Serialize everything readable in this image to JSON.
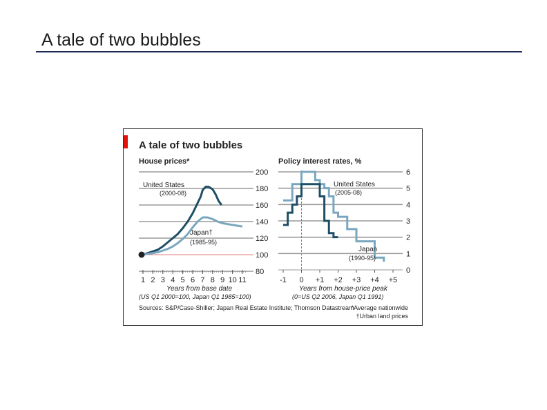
{
  "slide": {
    "title": "A tale of two bubbles"
  },
  "chart_data": [
    {
      "type": "line",
      "title": "A tale of two bubbles",
      "panel_title": "House prices*",
      "xlabel": "Years from base date",
      "xnote": "(US Q1 2000=100, Japan Q1 1985=100)",
      "xticks": [
        "1",
        "2",
        "3",
        "4",
        "5",
        "6",
        "7",
        "8",
        "9",
        "10",
        "11"
      ],
      "yticks": [
        "200",
        "180",
        "160",
        "140",
        "120",
        "100",
        "80"
      ],
      "ylim": [
        80,
        200
      ],
      "xlim": [
        0.5,
        11.5
      ],
      "grid": true,
      "series": [
        {
          "name": "United States",
          "sublabel": "(2000-08)",
          "color": "#1d4e66",
          "x": [
            1,
            1.5,
            2,
            2.5,
            3,
            3.5,
            4,
            4.5,
            5,
            5.5,
            6,
            6.4,
            6.8,
            7,
            7.3,
            7.6,
            8,
            8.3,
            8.6,
            8.9
          ],
          "y": [
            100,
            102,
            104,
            106,
            110,
            115,
            120,
            125,
            132,
            140,
            150,
            160,
            170,
            178,
            182,
            182,
            179,
            173,
            165,
            160
          ]
        },
        {
          "name": "Japan†",
          "sublabel": "(1985-95)",
          "color": "#7aa7bf",
          "x": [
            1,
            1.5,
            2,
            2.5,
            3,
            3.5,
            4,
            4.5,
            5,
            5.5,
            6,
            6.5,
            7,
            7.5,
            8,
            8.5,
            9,
            9.5,
            10,
            10.5,
            11
          ],
          "y": [
            100,
            101,
            102,
            103,
            105,
            107,
            110,
            114,
            119,
            125,
            133,
            140,
            145,
            145,
            143,
            140,
            138,
            137,
            136,
            135,
            134
          ]
        }
      ],
      "annotations": [
        "United States",
        "(2000-08)",
        "Japan†",
        "(1985-95)"
      ],
      "sources": "Sources: S&P/Case-Shiller; Japan Real Estate Institute; Thomson Datastream"
    },
    {
      "type": "line",
      "panel_title": "Policy interest rates, %",
      "xlabel": "Years from house-price peak",
      "xnote": "(0=US Q2 2006, Japan Q1 1991)",
      "xticks": [
        "-1",
        "0",
        "+1",
        "+2",
        "+3",
        "+4",
        "+5"
      ],
      "yticks": [
        "6",
        "5",
        "4",
        "3",
        "2",
        "1",
        "0"
      ],
      "ylim": [
        0,
        6
      ],
      "xlim": [
        -1.25,
        5.25
      ],
      "grid": true,
      "series": [
        {
          "name": "United States",
          "sublabel": "(2005-08)",
          "color": "#1d4e66",
          "x": [
            -1,
            -0.75,
            -0.5,
            -0.25,
            0,
            0.25,
            0.5,
            0.75,
            1,
            1.25,
            1.5,
            1.75,
            2
          ],
          "y": [
            2.75,
            3.5,
            4,
            4.5,
            5.25,
            5.25,
            5.25,
            5.25,
            4.5,
            3.0,
            2.25,
            2.0,
            2.0
          ]
        },
        {
          "name": "Japan",
          "sublabel": "(1990-95)",
          "color": "#7aa7bf",
          "x": [
            -1,
            -0.75,
            -0.5,
            -0.25,
            0,
            0.5,
            0.75,
            1,
            1.25,
            1.5,
            1.75,
            2,
            2.5,
            3,
            3.5,
            4,
            4.5
          ],
          "y": [
            4.25,
            4.25,
            5.25,
            5.25,
            6,
            6,
            5.5,
            5.25,
            5,
            4.5,
            3.5,
            3.25,
            2.5,
            1.75,
            1.75,
            0.75,
            0.5
          ]
        }
      ],
      "annotations": [
        "United States",
        "(2005-08)",
        "Japan",
        "(1990-95)"
      ],
      "footnotes": [
        "*Average nationwide",
        "†Urban land prices"
      ]
    }
  ]
}
